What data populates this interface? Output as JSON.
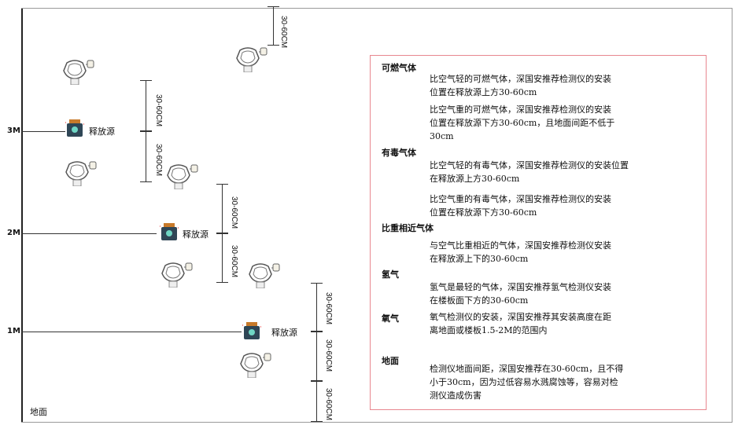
{
  "levels": {
    "l3": "3M",
    "l2": "2M",
    "l1": "1M",
    "ground": "地面"
  },
  "dimension_label": "30-60CM",
  "source_label": "释放源",
  "colors": {
    "box_border": "#e8878f",
    "source_cap": "#c87a2a",
    "source_body": "#2f4656"
  },
  "info": {
    "combustible": {
      "title": "可燃气体",
      "lighter": "比空气轻的可燃气体，深国安推荐检测仪的安装\n位置在释放源上方30-60cm",
      "heavier": "比空气重的可燃气体，深国安推荐检测仪的安装\n位置在释放源下方30-60cm，且地面间距不低于\n30cm"
    },
    "toxic": {
      "title": "有毒气体",
      "lighter": "比空气轻的有毒气体，深国安推荐检测仪的安装位置\n在释放源上方30-60cm",
      "heavier": "比空气重的有毒气体，深国安推荐检测仪的安装\n位置在释放源下方30-60cm"
    },
    "similar": {
      "title": "比重相近气体",
      "text": "与空气比重相近的气体，深国安推荐检测仪安装\n在释放源上下的30-60cm"
    },
    "hydrogen": {
      "title": "氢气",
      "text": "氢气是最轻的气体，深国安推荐氢气检测仪安装\n在楼板面下方的30-60cm"
    },
    "oxygen": {
      "title": "氧气",
      "text": "氧气检测仪的安装，深国安推荐其安装高度在距\n离地面或楼板1.5-2M的范围内"
    },
    "ground": {
      "title": "地面",
      "text": "检测仪地面间距，深国安推荐在30-60cm，且不得\n小于30cm，因为过低容易水溅腐蚀等，容易对检\n测仪造成伤害"
    }
  }
}
